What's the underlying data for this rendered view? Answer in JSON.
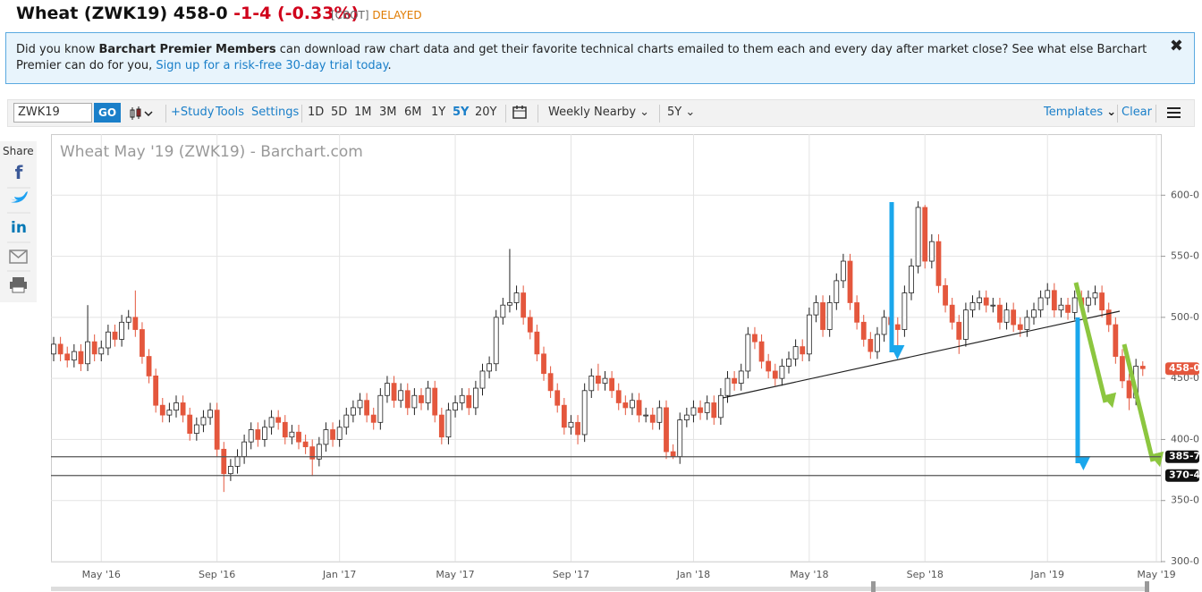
{
  "header": {
    "symbol_price": "Wheat (ZWK19) 458-0",
    "change": "-1-4 (-0.33%)",
    "exchange": "[CBOT]",
    "status": "DELAYED"
  },
  "banner": {
    "intro": "Did you know ",
    "bold": "Barchart Premier Members",
    "body": " can download raw chart data and get their favorite technical charts emailed to them each and every day after market close? See what else Barchart Premier can do for you, ",
    "link": "Sign up for a risk-free 30-day trial today",
    "end": "."
  },
  "toolbar": {
    "symbol": "ZWK19",
    "go": "GO",
    "study": "+Study",
    "tools": "Tools",
    "settings": "Settings",
    "periods": [
      "1D",
      "5D",
      "1M",
      "3M",
      "6M",
      "1Y",
      "5Y",
      "20Y"
    ],
    "aggregation": "Weekly Nearby",
    "range": "5Y",
    "templates": "Templates",
    "clear": "Clear"
  },
  "share": {
    "label": "Share"
  },
  "chart_data": {
    "type": "candlestick",
    "title": "Wheat May '19 (ZWK19) - Barchart.com",
    "categories": [
      null,
      null,
      null,
      null,
      null,
      null,
      null,
      "May '16",
      null,
      null,
      null,
      null,
      null,
      null,
      null,
      null,
      null,
      null,
      null,
      null,
      null,
      null,
      null,
      null,
      "Sep '16",
      null,
      null,
      null,
      null,
      null,
      null,
      null,
      null,
      null,
      null,
      null,
      null,
      null,
      null,
      null,
      null,
      null,
      "Jan '17",
      null,
      null,
      null,
      null,
      null,
      null,
      null,
      null,
      null,
      null,
      null,
      null,
      null,
      null,
      null,
      null,
      "May '17",
      null,
      null,
      null,
      null,
      null,
      null,
      null,
      null,
      null,
      null,
      null,
      null,
      null,
      null,
      null,
      null,
      "Sep '17",
      null,
      null,
      null,
      null,
      null,
      null,
      null,
      null,
      null,
      null,
      null,
      null,
      null,
      null,
      null,
      null,
      null,
      "Jan '18",
      null,
      null,
      null,
      null,
      null,
      null,
      null,
      null,
      null,
      null,
      null,
      null,
      null,
      null,
      null,
      null,
      "May '18",
      null,
      null,
      null,
      null,
      null,
      null,
      null,
      null,
      null,
      null,
      null,
      null,
      null,
      null,
      null,
      null,
      "Sep '18",
      null,
      null,
      null,
      null,
      null,
      null,
      null,
      null,
      null,
      null,
      null,
      null,
      null,
      null,
      null,
      null,
      null,
      "Jan '19",
      null,
      null,
      null,
      null,
      null,
      null,
      null,
      null,
      null,
      null,
      null,
      null,
      null,
      null,
      null,
      "May '19"
    ],
    "open": [
      470,
      478,
      470,
      465,
      472,
      462,
      480,
      470,
      475,
      488,
      482,
      496,
      500,
      490,
      468,
      452,
      428,
      420,
      424,
      430,
      420,
      405,
      412,
      418,
      424,
      392,
      372,
      378,
      386,
      398,
      408,
      400,
      410,
      418,
      414,
      402,
      406,
      398,
      394,
      384,
      396,
      408,
      400,
      410,
      420,
      426,
      432,
      420,
      414,
      436,
      446,
      432,
      440,
      426,
      436,
      430,
      442,
      420,
      402,
      424,
      430,
      436,
      426,
      442,
      456,
      462,
      500,
      510,
      512,
      520,
      500,
      488,
      470,
      454,
      440,
      428,
      410,
      414,
      404,
      440,
      452,
      446,
      450,
      440,
      430,
      426,
      432,
      420,
      420,
      414,
      426,
      390,
      386,
      416,
      420,
      426,
      422,
      430,
      418,
      436,
      450,
      446,
      456,
      486,
      480,
      464,
      456,
      450,
      460,
      466,
      476,
      470,
      502,
      512,
      490,
      512,
      530,
      546,
      512,
      496,
      482,
      472,
      486,
      500,
      494,
      490,
      520,
      542,
      590,
      546,
      562,
      526,
      510,
      496,
      482,
      506,
      512,
      516,
      510,
      510,
      496,
      506,
      494,
      490,
      500,
      506,
      516,
      522,
      506,
      510,
      504,
      516,
      510,
      516,
      520,
      506,
      494,
      468,
      448,
      434,
      460,
      null,
      null
    ],
    "high": [
      484,
      484,
      476,
      478,
      478,
      510,
      486,
      481,
      494,
      494,
      502,
      506,
      522,
      496,
      474,
      458,
      434,
      430,
      436,
      436,
      426,
      418,
      424,
      430,
      430,
      398,
      384,
      392,
      404,
      414,
      414,
      416,
      424,
      424,
      420,
      412,
      412,
      404,
      400,
      402,
      414,
      414,
      416,
      426,
      432,
      438,
      438,
      426,
      442,
      452,
      452,
      446,
      446,
      442,
      442,
      448,
      448,
      426,
      430,
      436,
      442,
      442,
      448,
      462,
      468,
      506,
      516,
      556,
      526,
      526,
      506,
      494,
      476,
      460,
      446,
      434,
      420,
      420,
      446,
      458,
      462,
      456,
      456,
      446,
      436,
      438,
      438,
      426,
      426,
      432,
      432,
      396,
      422,
      426,
      432,
      432,
      436,
      436,
      442,
      456,
      456,
      462,
      492,
      492,
      486,
      470,
      462,
      466,
      472,
      482,
      482,
      508,
      518,
      518,
      518,
      536,
      552,
      552,
      518,
      502,
      488,
      492,
      506,
      506,
      500,
      526,
      548,
      595,
      592,
      568,
      568,
      532,
      516,
      502,
      512,
      518,
      522,
      522,
      516,
      516,
      512,
      512,
      500,
      506,
      512,
      522,
      528,
      528,
      516,
      516,
      522,
      522,
      522,
      526,
      526,
      512,
      500,
      474,
      454,
      466,
      464,
      null,
      null
    ],
    "low": [
      464,
      464,
      459,
      459,
      456,
      456,
      464,
      464,
      469,
      476,
      476,
      490,
      484,
      462,
      446,
      422,
      414,
      414,
      418,
      414,
      399,
      399,
      406,
      412,
      386,
      357,
      366,
      372,
      380,
      392,
      394,
      394,
      404,
      408,
      396,
      396,
      392,
      388,
      370,
      378,
      390,
      394,
      394,
      404,
      414,
      420,
      414,
      408,
      408,
      430,
      426,
      426,
      420,
      420,
      424,
      424,
      414,
      396,
      396,
      418,
      424,
      420,
      420,
      436,
      450,
      456,
      494,
      504,
      506,
      494,
      482,
      464,
      448,
      434,
      422,
      404,
      404,
      396,
      398,
      434,
      440,
      440,
      434,
      424,
      420,
      420,
      414,
      414,
      408,
      408,
      384,
      384,
      380,
      410,
      414,
      416,
      416,
      412,
      412,
      430,
      440,
      440,
      450,
      474,
      458,
      450,
      444,
      444,
      454,
      460,
      464,
      464,
      496,
      484,
      484,
      506,
      524,
      506,
      490,
      476,
      466,
      466,
      480,
      488,
      470,
      484,
      514,
      536,
      540,
      540,
      520,
      504,
      490,
      470,
      476,
      500,
      506,
      504,
      504,
      490,
      490,
      488,
      484,
      484,
      494,
      500,
      510,
      500,
      500,
      498,
      498,
      504,
      504,
      510,
      500,
      488,
      462,
      442,
      424,
      428,
      452,
      null,
      null
    ],
    "close": [
      478,
      470,
      465,
      472,
      462,
      480,
      470,
      475,
      488,
      482,
      496,
      500,
      490,
      468,
      452,
      428,
      420,
      424,
      430,
      420,
      405,
      412,
      418,
      424,
      392,
      372,
      378,
      386,
      398,
      408,
      400,
      410,
      418,
      414,
      402,
      406,
      398,
      394,
      384,
      396,
      408,
      400,
      410,
      420,
      426,
      432,
      420,
      414,
      436,
      446,
      432,
      440,
      426,
      436,
      430,
      442,
      420,
      402,
      424,
      430,
      436,
      426,
      442,
      456,
      462,
      500,
      510,
      512,
      520,
      500,
      488,
      470,
      454,
      440,
      428,
      410,
      414,
      404,
      440,
      452,
      446,
      450,
      440,
      430,
      426,
      432,
      420,
      420,
      414,
      426,
      390,
      386,
      416,
      420,
      426,
      422,
      430,
      418,
      436,
      450,
      446,
      456,
      486,
      480,
      464,
      456,
      450,
      460,
      466,
      476,
      470,
      502,
      512,
      490,
      512,
      530,
      546,
      512,
      496,
      482,
      472,
      486,
      500,
      494,
      490,
      520,
      542,
      590,
      546,
      562,
      526,
      510,
      496,
      482,
      506,
      512,
      516,
      510,
      510,
      496,
      506,
      494,
      490,
      500,
      506,
      516,
      522,
      506,
      510,
      504,
      516,
      510,
      516,
      520,
      506,
      494,
      468,
      448,
      434,
      460,
      458,
      null,
      null
    ],
    "up_color": "#ffffff",
    "down_color": "#e4573d",
    "ylim": [
      300,
      650
    ],
    "yticks": [
      {
        "value": 300,
        "label": "300-0"
      },
      {
        "value": 350,
        "label": "350-0"
      },
      {
        "value": 400,
        "label": "400-0"
      },
      {
        "value": 450,
        "label": "450-0"
      },
      {
        "value": 500,
        "label": "500-0"
      },
      {
        "value": 550,
        "label": "550-0"
      },
      {
        "value": 600,
        "label": "600-0"
      }
    ],
    "grid": true,
    "hlines": [
      {
        "value": 385.875,
        "label": "385-7"
      },
      {
        "value": 370.5,
        "label": "370-4"
      }
    ],
    "last_price": {
      "value": 458,
      "label": "458-0"
    }
  }
}
